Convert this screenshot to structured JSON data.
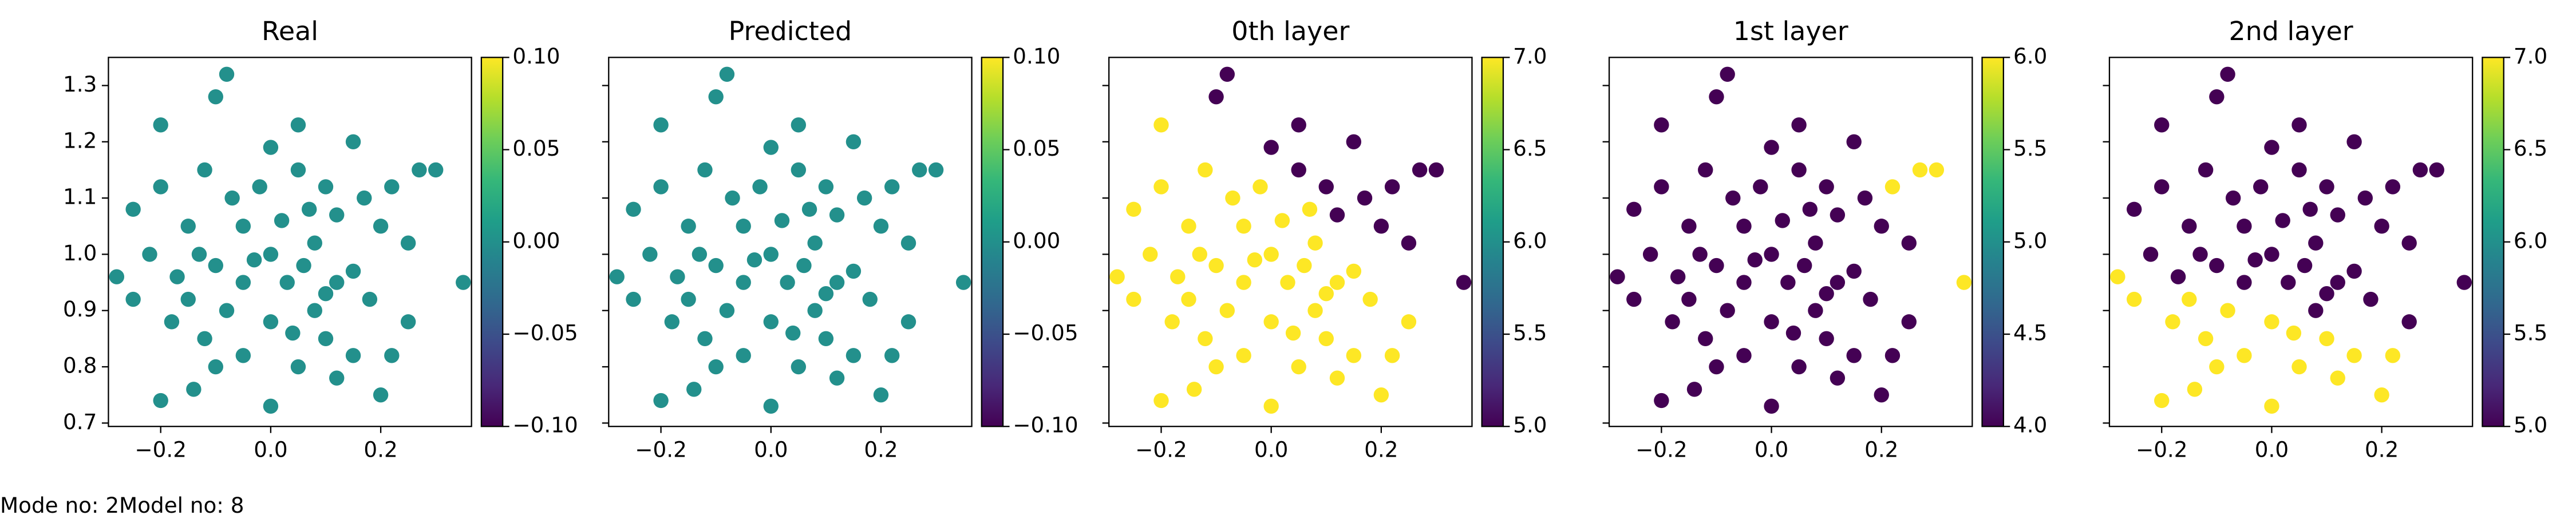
{
  "chart_data": [
    {
      "type": "scatter",
      "title": "Real",
      "colormap": "viridis",
      "x": [
        -0.28,
        0.35,
        -0.08,
        0.0,
        -0.2,
        0.2,
        -0.2,
        -0.1,
        0.05,
        0.3,
        0.27,
        0.22,
        0.15,
        -0.25,
        -0.22,
        -0.15,
        -0.1,
        -0.05,
        0.0,
        0.03,
        0.08,
        0.12,
        0.15,
        0.18,
        0.25,
        0.1,
        0.05,
        -0.05,
        -0.12,
        -0.18,
        -0.15,
        -0.08,
        0.0,
        0.08,
        0.12,
        -0.02,
        0.05,
        -0.12,
        0.1,
        0.2,
        0.25,
        -0.2,
        -0.25,
        0.15,
        -0.1,
        0.22,
        -0.05,
        0.02,
        -0.07,
        0.06,
        -0.03,
        0.1,
        -0.13,
        0.17,
        0.07,
        -0.17,
        0.0,
        0.12,
        -0.14,
        0.04
      ],
      "y": [
        0.96,
        0.95,
        1.32,
        0.73,
        0.74,
        0.75,
        1.23,
        1.28,
        1.23,
        1.15,
        1.15,
        1.12,
        1.2,
        1.08,
        1.0,
        1.05,
        0.98,
        1.05,
        1.0,
        0.95,
        1.02,
        1.07,
        0.97,
        0.92,
        0.88,
        0.85,
        0.8,
        0.82,
        0.85,
        0.88,
        0.92,
        0.9,
        0.88,
        0.9,
        0.95,
        1.12,
        1.15,
        1.15,
        1.12,
        1.05,
        1.02,
        1.12,
        0.92,
        0.82,
        0.8,
        0.82,
        0.95,
        1.06,
        1.1,
        0.98,
        0.99,
        0.93,
        1.0,
        1.1,
        1.08,
        0.96,
        1.19,
        0.78,
        0.76,
        0.86
      ],
      "values": [
        0,
        0,
        0,
        0,
        0,
        0,
        0,
        0,
        0,
        0,
        0,
        0,
        0,
        0,
        0,
        0,
        0,
        0,
        0,
        0,
        0,
        0,
        0,
        0,
        0,
        0,
        0,
        0,
        0,
        0,
        0,
        0,
        0,
        0,
        0,
        0,
        0,
        0,
        0,
        0,
        0,
        0,
        0,
        0,
        0,
        0,
        0,
        0,
        0,
        0,
        0,
        0,
        0,
        0,
        0,
        0,
        0,
        0,
        0,
        0
      ],
      "xlim": [
        -0.295,
        0.365
      ],
      "ylim": [
        0.694,
        1.35
      ],
      "xticks": [
        {
          "value": -0.2,
          "label": "−0.2"
        },
        {
          "value": 0,
          "label": "0.0"
        },
        0.2
      ],
      "yticks": [
        0.7,
        0.8,
        0.9,
        {
          "value": 1,
          "label": "1.0"
        },
        1.1,
        1.2,
        1.3
      ],
      "clim": [
        -0.1,
        0.1
      ],
      "cticks": [
        {
          "value": -0.1,
          "label": "−0.10"
        },
        {
          "value": -0.05,
          "label": "−0.05"
        },
        {
          "value": 0,
          "label": "0.00"
        },
        0.05,
        {
          "value": 0.1,
          "label": "0.10"
        }
      ]
    },
    {
      "type": "scatter",
      "title": "Predicted",
      "colormap": "viridis",
      "x": [
        -0.28,
        0.35,
        -0.08,
        0.0,
        -0.2,
        0.2,
        -0.2,
        -0.1,
        0.05,
        0.3,
        0.27,
        0.22,
        0.15,
        -0.25,
        -0.22,
        -0.15,
        -0.1,
        -0.05,
        0.0,
        0.03,
        0.08,
        0.12,
        0.15,
        0.18,
        0.25,
        0.1,
        0.05,
        -0.05,
        -0.12,
        -0.18,
        -0.15,
        -0.08,
        0.0,
        0.08,
        0.12,
        -0.02,
        0.05,
        -0.12,
        0.1,
        0.2,
        0.25,
        -0.2,
        -0.25,
        0.15,
        -0.1,
        0.22,
        -0.05,
        0.02,
        -0.07,
        0.06,
        -0.03,
        0.1,
        -0.13,
        0.17,
        0.07,
        -0.17,
        0.0,
        0.12,
        -0.14,
        0.04
      ],
      "y": [
        0.96,
        0.95,
        1.32,
        0.73,
        0.74,
        0.75,
        1.23,
        1.28,
        1.23,
        1.15,
        1.15,
        1.12,
        1.2,
        1.08,
        1.0,
        1.05,
        0.98,
        1.05,
        1.0,
        0.95,
        1.02,
        1.07,
        0.97,
        0.92,
        0.88,
        0.85,
        0.8,
        0.82,
        0.85,
        0.88,
        0.92,
        0.9,
        0.88,
        0.9,
        0.95,
        1.12,
        1.15,
        1.15,
        1.12,
        1.05,
        1.02,
        1.12,
        0.92,
        0.82,
        0.8,
        0.82,
        0.95,
        1.06,
        1.1,
        0.98,
        0.99,
        0.93,
        1.0,
        1.1,
        1.08,
        0.96,
        1.19,
        0.78,
        0.76,
        0.86
      ],
      "values": [
        0,
        0,
        0,
        0,
        0,
        0,
        0,
        0,
        0,
        0,
        0,
        0,
        0,
        0,
        0,
        0,
        0,
        0,
        0,
        0,
        0,
        0,
        0,
        0,
        0,
        0,
        0,
        0,
        0,
        0,
        0,
        0,
        0,
        0,
        0,
        0,
        0,
        0,
        0,
        0,
        0,
        0,
        0,
        0,
        0,
        0,
        0,
        0,
        0,
        0,
        0,
        0,
        0,
        0,
        0,
        0,
        0,
        0,
        0,
        0
      ],
      "xlim": [
        -0.295,
        0.365
      ],
      "ylim": [
        0.694,
        1.35
      ],
      "xticks": [
        {
          "value": -0.2,
          "label": "−0.2"
        },
        {
          "value": 0,
          "label": "0.0"
        },
        0.2
      ],
      "clim": [
        -0.1,
        0.1
      ],
      "cticks": [
        {
          "value": -0.1,
          "label": "−0.10"
        },
        {
          "value": -0.05,
          "label": "−0.05"
        },
        {
          "value": 0,
          "label": "0.00"
        },
        0.05,
        {
          "value": 0.1,
          "label": "0.10"
        }
      ]
    },
    {
      "type": "scatter",
      "title": "0th layer",
      "colormap": "viridis",
      "x": [
        -0.28,
        0.35,
        -0.08,
        0.0,
        -0.2,
        0.2,
        -0.2,
        -0.1,
        0.05,
        0.3,
        0.27,
        0.22,
        0.15,
        -0.25,
        -0.22,
        -0.15,
        -0.1,
        -0.05,
        0.0,
        0.03,
        0.08,
        0.12,
        0.15,
        0.18,
        0.25,
        0.1,
        0.05,
        -0.05,
        -0.12,
        -0.18,
        -0.15,
        -0.08,
        0.0,
        0.08,
        0.12,
        -0.02,
        0.05,
        -0.12,
        0.1,
        0.2,
        0.25,
        -0.2,
        -0.25,
        0.15,
        -0.1,
        0.22,
        -0.05,
        0.02,
        -0.07,
        0.06,
        -0.03,
        0.1,
        -0.13,
        0.17,
        0.07,
        -0.17,
        0.0,
        0.12,
        -0.14,
        0.04
      ],
      "y": [
        0.96,
        0.95,
        1.32,
        0.73,
        0.74,
        0.75,
        1.23,
        1.28,
        1.23,
        1.15,
        1.15,
        1.12,
        1.2,
        1.08,
        1.0,
        1.05,
        0.98,
        1.05,
        1.0,
        0.95,
        1.02,
        1.07,
        0.97,
        0.92,
        0.88,
        0.85,
        0.8,
        0.82,
        0.85,
        0.88,
        0.92,
        0.9,
        0.88,
        0.9,
        0.95,
        1.12,
        1.15,
        1.15,
        1.12,
        1.05,
        1.02,
        1.12,
        0.92,
        0.82,
        0.8,
        0.82,
        0.95,
        1.06,
        1.1,
        0.98,
        0.99,
        0.93,
        1.0,
        1.1,
        1.08,
        0.96,
        1.19,
        0.78,
        0.76,
        0.86
      ],
      "values": [
        7,
        5,
        5,
        7,
        7,
        7,
        7,
        5,
        5,
        5,
        5,
        5,
        5,
        7,
        7,
        7,
        7,
        7,
        7,
        7,
        7,
        5,
        7,
        7,
        7,
        7,
        7,
        7,
        7,
        7,
        7,
        7,
        7,
        7,
        7,
        7,
        5,
        7,
        5,
        5,
        5,
        7,
        7,
        7,
        7,
        7,
        7,
        7,
        7,
        7,
        7,
        7,
        7,
        5,
        7,
        7,
        5,
        7,
        7,
        7
      ],
      "xlim": [
        -0.295,
        0.365
      ],
      "ylim": [
        0.694,
        1.35
      ],
      "xticks": [
        {
          "value": -0.2,
          "label": "−0.2"
        },
        {
          "value": 0,
          "label": "0.0"
        },
        0.2
      ],
      "clim": [
        5,
        7
      ],
      "cticks": [
        {
          "value": 5,
          "label": "5.0"
        },
        5.5,
        {
          "value": 6,
          "label": "6.0"
        },
        6.5,
        {
          "value": 7,
          "label": "7.0"
        }
      ]
    },
    {
      "type": "scatter",
      "title": "1st layer",
      "colormap": "viridis",
      "x": [
        -0.28,
        0.35,
        -0.08,
        0.0,
        -0.2,
        0.2,
        -0.2,
        -0.1,
        0.05,
        0.3,
        0.27,
        0.22,
        0.15,
        -0.25,
        -0.22,
        -0.15,
        -0.1,
        -0.05,
        0.0,
        0.03,
        0.08,
        0.12,
        0.15,
        0.18,
        0.25,
        0.1,
        0.05,
        -0.05,
        -0.12,
        -0.18,
        -0.15,
        -0.08,
        0.0,
        0.08,
        0.12,
        -0.02,
        0.05,
        -0.12,
        0.1,
        0.2,
        0.25,
        -0.2,
        -0.25,
        0.15,
        -0.1,
        0.22,
        -0.05,
        0.02,
        -0.07,
        0.06,
        -0.03,
        0.1,
        -0.13,
        0.17,
        0.07,
        -0.17,
        0.0,
        0.12,
        -0.14,
        0.04
      ],
      "y": [
        0.96,
        0.95,
        1.32,
        0.73,
        0.74,
        0.75,
        1.23,
        1.28,
        1.23,
        1.15,
        1.15,
        1.12,
        1.2,
        1.08,
        1.0,
        1.05,
        0.98,
        1.05,
        1.0,
        0.95,
        1.02,
        1.07,
        0.97,
        0.92,
        0.88,
        0.85,
        0.8,
        0.82,
        0.85,
        0.88,
        0.92,
        0.9,
        0.88,
        0.9,
        0.95,
        1.12,
        1.15,
        1.15,
        1.12,
        1.05,
        1.02,
        1.12,
        0.92,
        0.82,
        0.8,
        0.82,
        0.95,
        1.06,
        1.1,
        0.98,
        0.99,
        0.93,
        1.0,
        1.1,
        1.08,
        0.96,
        1.19,
        0.78,
        0.76,
        0.86
      ],
      "values": [
        4,
        6,
        4,
        4,
        4,
        4,
        4,
        4,
        4,
        6,
        6,
        6,
        4,
        4,
        4,
        4,
        4,
        4,
        4,
        4,
        4,
        4,
        4,
        4,
        4,
        4,
        4,
        4,
        4,
        4,
        4,
        4,
        4,
        4,
        4,
        4,
        4,
        4,
        4,
        4,
        4,
        4,
        4,
        4,
        4,
        4,
        4,
        4,
        4,
        4,
        4,
        4,
        4,
        4,
        4,
        4,
        4,
        4,
        4,
        4
      ],
      "xlim": [
        -0.295,
        0.365
      ],
      "ylim": [
        0.694,
        1.35
      ],
      "xticks": [
        {
          "value": -0.2,
          "label": "−0.2"
        },
        {
          "value": 0,
          "label": "0.0"
        },
        0.2
      ],
      "clim": [
        4,
        6
      ],
      "cticks": [
        {
          "value": 4,
          "label": "4.0"
        },
        4.5,
        {
          "value": 5,
          "label": "5.0"
        },
        5.5,
        {
          "value": 6,
          "label": "6.0"
        }
      ]
    },
    {
      "type": "scatter",
      "title": "2nd layer",
      "colormap": "viridis",
      "x": [
        -0.28,
        0.35,
        -0.08,
        0.0,
        -0.2,
        0.2,
        -0.2,
        -0.1,
        0.05,
        0.3,
        0.27,
        0.22,
        0.15,
        -0.25,
        -0.22,
        -0.15,
        -0.1,
        -0.05,
        0.0,
        0.03,
        0.08,
        0.12,
        0.15,
        0.18,
        0.25,
        0.1,
        0.05,
        -0.05,
        -0.12,
        -0.18,
        -0.15,
        -0.08,
        0.0,
        0.08,
        0.12,
        -0.02,
        0.05,
        -0.12,
        0.1,
        0.2,
        0.25,
        -0.2,
        -0.25,
        0.15,
        -0.1,
        0.22,
        -0.05,
        0.02,
        -0.07,
        0.06,
        -0.03,
        0.1,
        -0.13,
        0.17,
        0.07,
        -0.17,
        0.0,
        0.12,
        -0.14,
        0.04
      ],
      "y": [
        0.96,
        0.95,
        1.32,
        0.73,
        0.74,
        0.75,
        1.23,
        1.28,
        1.23,
        1.15,
        1.15,
        1.12,
        1.2,
        1.08,
        1.0,
        1.05,
        0.98,
        1.05,
        1.0,
        0.95,
        1.02,
        1.07,
        0.97,
        0.92,
        0.88,
        0.85,
        0.8,
        0.82,
        0.85,
        0.88,
        0.92,
        0.9,
        0.88,
        0.9,
        0.95,
        1.12,
        1.15,
        1.15,
        1.12,
        1.05,
        1.02,
        1.12,
        0.92,
        0.82,
        0.8,
        0.82,
        0.95,
        1.06,
        1.1,
        0.98,
        0.99,
        0.93,
        1.0,
        1.1,
        1.08,
        0.96,
        1.19,
        0.78,
        0.76,
        0.86
      ],
      "values": [
        7,
        5,
        5,
        7,
        7,
        7,
        5,
        5,
        5,
        5,
        5,
        5,
        5,
        5,
        5,
        5,
        5,
        5,
        5,
        5,
        5,
        5,
        5,
        5,
        5,
        7,
        7,
        7,
        7,
        7,
        7,
        7,
        7,
        5,
        5,
        5,
        5,
        5,
        5,
        5,
        5,
        5,
        7,
        7,
        7,
        7,
        5,
        5,
        5,
        5,
        5,
        5,
        5,
        5,
        5,
        5,
        5,
        7,
        7,
        7
      ],
      "xlim": [
        -0.295,
        0.365
      ],
      "ylim": [
        0.694,
        1.35
      ],
      "xticks": [
        {
          "value": -0.2,
          "label": "−0.2"
        },
        {
          "value": 0,
          "label": "0.0"
        },
        0.2
      ],
      "clim": [
        5,
        7
      ],
      "cticks": [
        {
          "value": 5,
          "label": "5.0"
        },
        5.5,
        {
          "value": 6,
          "label": "6.0"
        },
        6.5,
        {
          "value": 7,
          "label": "7.0"
        }
      ]
    }
  ],
  "footer": "Mode no: 2Model no: 8"
}
